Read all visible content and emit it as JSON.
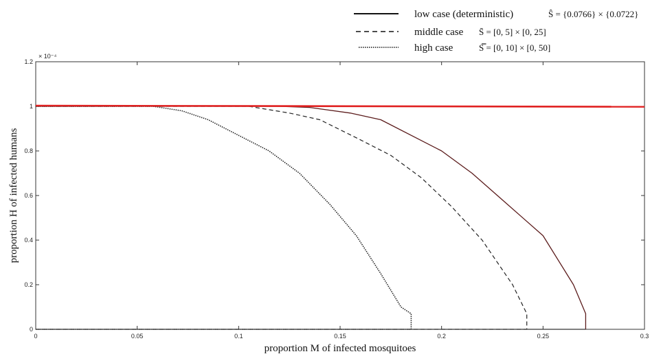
{
  "chart_data": {
    "type": "line",
    "title": "",
    "xlabel": "proportion M of infected mosquitoes",
    "ylabel": "proportion H of infected humans",
    "xlim": [
      0,
      0.3
    ],
    "ylim": [
      0,
      1.2
    ],
    "y_exponent_label": "× 10⁻⁴",
    "xticks": [
      "0",
      "0.05",
      "0.1",
      "0.15",
      "0.2",
      "0.25",
      "0.3"
    ],
    "yticks": [
      "0",
      "0.2",
      "0.4",
      "0.6",
      "0.8",
      "1",
      "1.2"
    ],
    "grid": false,
    "legend_position": "top-right",
    "series": [
      {
        "name": "low case (deterministic)",
        "math": "Ŝ = {0.0766} × {0.0722}",
        "style": "solid",
        "color": "#5a1a1a",
        "x": [
          0,
          0.12,
          0.135,
          0.155,
          0.17,
          0.2,
          0.215,
          0.23,
          0.25,
          0.265,
          0.271,
          0.271
        ],
        "y": [
          1,
          1,
          0.995,
          0.97,
          0.94,
          0.8,
          0.7,
          0.58,
          0.42,
          0.2,
          0.07,
          0
        ]
      },
      {
        "name": "middle case",
        "math": "S̄ = [0, 5] × [0, 25]",
        "style": "dashed",
        "color": "#222222",
        "x": [
          0,
          0.105,
          0.125,
          0.14,
          0.16,
          0.175,
          0.19,
          0.205,
          0.22,
          0.235,
          0.242,
          0.242
        ],
        "y": [
          1,
          1,
          0.97,
          0.94,
          0.85,
          0.78,
          0.68,
          0.55,
          0.4,
          0.2,
          0.07,
          0
        ]
      },
      {
        "name": "high case",
        "math": "S̿ = [0, 10] × [0, 50]",
        "style": "dotted",
        "color": "#222222",
        "x": [
          0,
          0.058,
          0.072,
          0.085,
          0.1,
          0.115,
          0.13,
          0.145,
          0.158,
          0.17,
          0.18,
          0.185,
          0.185
        ],
        "y": [
          1,
          1,
          0.98,
          0.94,
          0.87,
          0.8,
          0.7,
          0.56,
          0.42,
          0.25,
          0.1,
          0.07,
          0
        ]
      },
      {
        "name": "",
        "style": "solid-red",
        "color": "#e02020",
        "x": [
          0,
          0.3
        ],
        "y": [
          1.003,
          0.998
        ]
      }
    ]
  }
}
